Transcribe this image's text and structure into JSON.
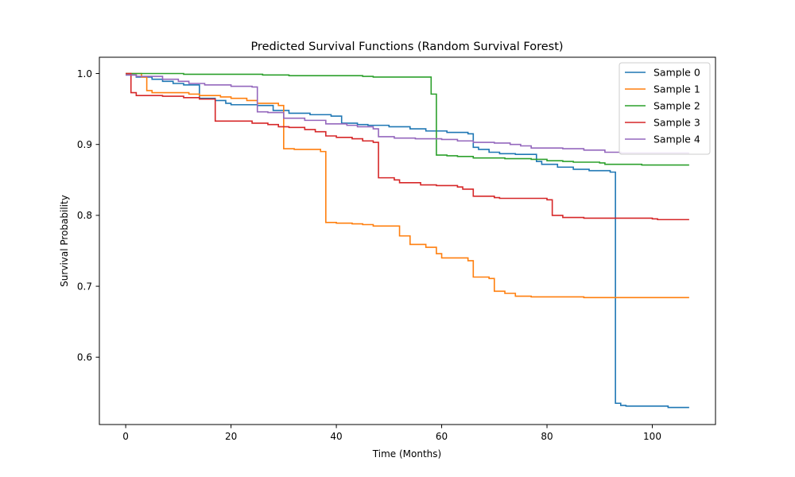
{
  "chart_data": {
    "type": "line",
    "title": "Predicted Survival Functions (Random Survival Forest)",
    "xlabel": "Time (Months)",
    "ylabel": "Survival Probability",
    "xlim": [
      -5,
      112
    ],
    "ylim": [
      0.505,
      1.023
    ],
    "xticks": [
      0,
      20,
      40,
      60,
      80,
      100
    ],
    "yticks": [
      0.6,
      0.7,
      0.8,
      0.9,
      1.0
    ],
    "grid": false,
    "legend_position": "top-right",
    "step": "post",
    "series": [
      {
        "name": "Sample 0",
        "color": "#1f77b4",
        "points": [
          [
            0,
            0.998
          ],
          [
            2,
            0.995
          ],
          [
            5,
            0.992
          ],
          [
            7,
            0.989
          ],
          [
            9,
            0.986
          ],
          [
            11,
            0.984
          ],
          [
            14,
            0.965
          ],
          [
            17,
            0.962
          ],
          [
            19,
            0.958
          ],
          [
            20,
            0.956
          ],
          [
            25,
            0.955
          ],
          [
            28,
            0.948
          ],
          [
            31,
            0.944
          ],
          [
            35,
            0.942
          ],
          [
            39,
            0.94
          ],
          [
            41,
            0.93
          ],
          [
            44,
            0.928
          ],
          [
            46,
            0.927
          ],
          [
            50,
            0.925
          ],
          [
            54,
            0.922
          ],
          [
            57,
            0.919
          ],
          [
            61,
            0.917
          ],
          [
            65,
            0.915
          ],
          [
            66,
            0.896
          ],
          [
            67,
            0.893
          ],
          [
            69,
            0.889
          ],
          [
            71,
            0.887
          ],
          [
            74,
            0.886
          ],
          [
            78,
            0.876
          ],
          [
            79,
            0.872
          ],
          [
            82,
            0.868
          ],
          [
            85,
            0.865
          ],
          [
            88,
            0.863
          ],
          [
            92,
            0.861
          ],
          [
            93,
            0.535
          ],
          [
            94,
            0.532
          ],
          [
            95,
            0.531
          ],
          [
            103,
            0.529
          ],
          [
            107,
            0.529
          ]
        ]
      },
      {
        "name": "Sample 1",
        "color": "#ff7f0e",
        "points": [
          [
            0,
            1.0
          ],
          [
            3,
            0.995
          ],
          [
            4,
            0.976
          ],
          [
            5,
            0.973
          ],
          [
            12,
            0.971
          ],
          [
            14,
            0.969
          ],
          [
            18,
            0.967
          ],
          [
            20,
            0.965
          ],
          [
            23,
            0.962
          ],
          [
            25,
            0.958
          ],
          [
            29,
            0.955
          ],
          [
            30,
            0.894
          ],
          [
            32,
            0.893
          ],
          [
            37,
            0.89
          ],
          [
            38,
            0.79
          ],
          [
            40,
            0.789
          ],
          [
            43,
            0.788
          ],
          [
            45,
            0.787
          ],
          [
            47,
            0.785
          ],
          [
            52,
            0.771
          ],
          [
            54,
            0.759
          ],
          [
            57,
            0.755
          ],
          [
            59,
            0.746
          ],
          [
            60,
            0.74
          ],
          [
            65,
            0.736
          ],
          [
            66,
            0.713
          ],
          [
            69,
            0.711
          ],
          [
            70,
            0.693
          ],
          [
            72,
            0.69
          ],
          [
            74,
            0.686
          ],
          [
            77,
            0.685
          ],
          [
            87,
            0.684
          ],
          [
            107,
            0.684
          ]
        ]
      },
      {
        "name": "Sample 2",
        "color": "#2ca02c",
        "points": [
          [
            0,
            1.0
          ],
          [
            11,
            0.999
          ],
          [
            26,
            0.998
          ],
          [
            31,
            0.997
          ],
          [
            45,
            0.996
          ],
          [
            47,
            0.995
          ],
          [
            58,
            0.971
          ],
          [
            59,
            0.885
          ],
          [
            61,
            0.884
          ],
          [
            63,
            0.883
          ],
          [
            66,
            0.881
          ],
          [
            72,
            0.88
          ],
          [
            77,
            0.879
          ],
          [
            80,
            0.877
          ],
          [
            83,
            0.876
          ],
          [
            85,
            0.875
          ],
          [
            90,
            0.874
          ],
          [
            91,
            0.872
          ],
          [
            98,
            0.871
          ],
          [
            107,
            0.871
          ]
        ]
      },
      {
        "name": "Sample 3",
        "color": "#d62728",
        "points": [
          [
            0,
            1.0
          ],
          [
            1,
            0.973
          ],
          [
            2,
            0.969
          ],
          [
            7,
            0.968
          ],
          [
            11,
            0.966
          ],
          [
            14,
            0.964
          ],
          [
            17,
            0.962
          ],
          [
            17,
            0.933
          ],
          [
            24,
            0.93
          ],
          [
            27,
            0.928
          ],
          [
            29,
            0.925
          ],
          [
            31,
            0.924
          ],
          [
            34,
            0.921
          ],
          [
            36,
            0.918
          ],
          [
            38,
            0.912
          ],
          [
            40,
            0.91
          ],
          [
            43,
            0.908
          ],
          [
            45,
            0.905
          ],
          [
            47,
            0.903
          ],
          [
            48,
            0.853
          ],
          [
            51,
            0.85
          ],
          [
            52,
            0.846
          ],
          [
            56,
            0.843
          ],
          [
            59,
            0.842
          ],
          [
            63,
            0.84
          ],
          [
            64,
            0.837
          ],
          [
            66,
            0.827
          ],
          [
            70,
            0.825
          ],
          [
            71,
            0.824
          ],
          [
            80,
            0.822
          ],
          [
            81,
            0.8
          ],
          [
            83,
            0.797
          ],
          [
            87,
            0.796
          ],
          [
            100,
            0.795
          ],
          [
            101,
            0.794
          ],
          [
            107,
            0.794
          ]
        ]
      },
      {
        "name": "Sample 4",
        "color": "#9467bd",
        "points": [
          [
            0,
            0.998
          ],
          [
            2,
            0.996
          ],
          [
            7,
            0.992
          ],
          [
            10,
            0.989
          ],
          [
            12,
            0.986
          ],
          [
            15,
            0.984
          ],
          [
            20,
            0.982
          ],
          [
            24,
            0.981
          ],
          [
            25,
            0.946
          ],
          [
            27,
            0.945
          ],
          [
            30,
            0.937
          ],
          [
            34,
            0.934
          ],
          [
            38,
            0.929
          ],
          [
            42,
            0.927
          ],
          [
            44,
            0.925
          ],
          [
            47,
            0.922
          ],
          [
            48,
            0.911
          ],
          [
            51,
            0.909
          ],
          [
            55,
            0.908
          ],
          [
            60,
            0.907
          ],
          [
            63,
            0.905
          ],
          [
            66,
            0.903
          ],
          [
            70,
            0.902
          ],
          [
            73,
            0.9
          ],
          [
            75,
            0.898
          ],
          [
            77,
            0.895
          ],
          [
            83,
            0.894
          ],
          [
            87,
            0.892
          ],
          [
            91,
            0.889
          ],
          [
            94,
            0.888
          ],
          [
            107,
            0.888
          ]
        ]
      }
    ]
  }
}
